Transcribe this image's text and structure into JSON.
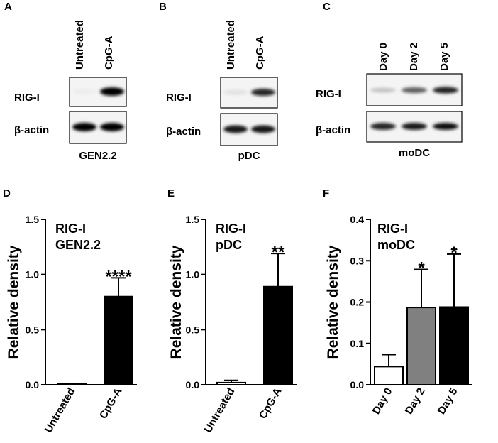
{
  "blots": [
    {
      "panel": "A",
      "columns": [
        "Untreated",
        "CpG-A"
      ],
      "rows": [
        "RIG-I",
        "β-actin"
      ],
      "cell_line": "GEN2.2",
      "rig_intensity": [
        0.03,
        1.0
      ],
      "actin_intensity": [
        1.0,
        1.0
      ]
    },
    {
      "panel": "B",
      "columns": [
        "Untreated",
        "CpG-A"
      ],
      "rows": [
        "RIG-I",
        "β-actin"
      ],
      "cell_line": "pDC",
      "rig_intensity": [
        0.08,
        0.85
      ],
      "actin_intensity": [
        0.9,
        0.9
      ]
    },
    {
      "panel": "C",
      "columns": [
        "Day 0",
        "Day 2",
        "Day 5"
      ],
      "rows": [
        "RIG-I",
        "β-actin"
      ],
      "cell_line": "moDC",
      "rig_intensity": [
        0.2,
        0.6,
        0.85
      ],
      "actin_intensity": [
        0.85,
        0.9,
        0.95
      ]
    }
  ],
  "chart_data": [
    {
      "panel": "D",
      "type": "bar",
      "categories": [
        "Untreated",
        "CpG-A"
      ],
      "values": [
        0.0,
        0.8
      ],
      "errors": [
        0.01,
        0.17
      ],
      "significance": [
        "",
        "****"
      ],
      "bar_colors": [
        "#ffffff",
        "#000000"
      ],
      "annotation": [
        "RIG-I",
        "GEN2.2"
      ],
      "ylabel": "Relative density",
      "ylim": [
        0,
        1.5
      ],
      "yticks": [
        "0.0",
        "0.5",
        "1.0",
        "1.5"
      ],
      "ytick_values": [
        0,
        0.5,
        1.0,
        1.5
      ]
    },
    {
      "panel": "E",
      "type": "bar",
      "categories": [
        "Untreated",
        "CpG-A"
      ],
      "values": [
        0.02,
        0.89
      ],
      "errors": [
        0.02,
        0.3
      ],
      "significance": [
        "",
        "**"
      ],
      "bar_colors": [
        "#ffffff",
        "#000000"
      ],
      "annotation": [
        "RIG-I",
        "pDC"
      ],
      "ylabel": "Relative density",
      "ylim": [
        0,
        1.5
      ],
      "yticks": [
        "0.0",
        "0.5",
        "1.0",
        "1.5"
      ],
      "ytick_values": [
        0,
        0.5,
        1.0,
        1.5
      ]
    },
    {
      "panel": "F",
      "type": "bar",
      "categories": [
        "Day 0",
        "Day 2",
        "Day 5"
      ],
      "values": [
        0.044,
        0.187,
        0.188
      ],
      "errors": [
        0.029,
        0.092,
        0.128
      ],
      "significance": [
        "",
        "*",
        "*"
      ],
      "bar_colors": [
        "#ffffff",
        "#808080",
        "#000000"
      ],
      "annotation": [
        "RIG-I",
        "moDC"
      ],
      "ylabel": "Relative density",
      "ylim": [
        0,
        0.4
      ],
      "yticks": [
        "0.0",
        "0.1",
        "0.2",
        "0.3",
        "0.4"
      ],
      "ytick_values": [
        0,
        0.1,
        0.2,
        0.3,
        0.4
      ]
    }
  ]
}
